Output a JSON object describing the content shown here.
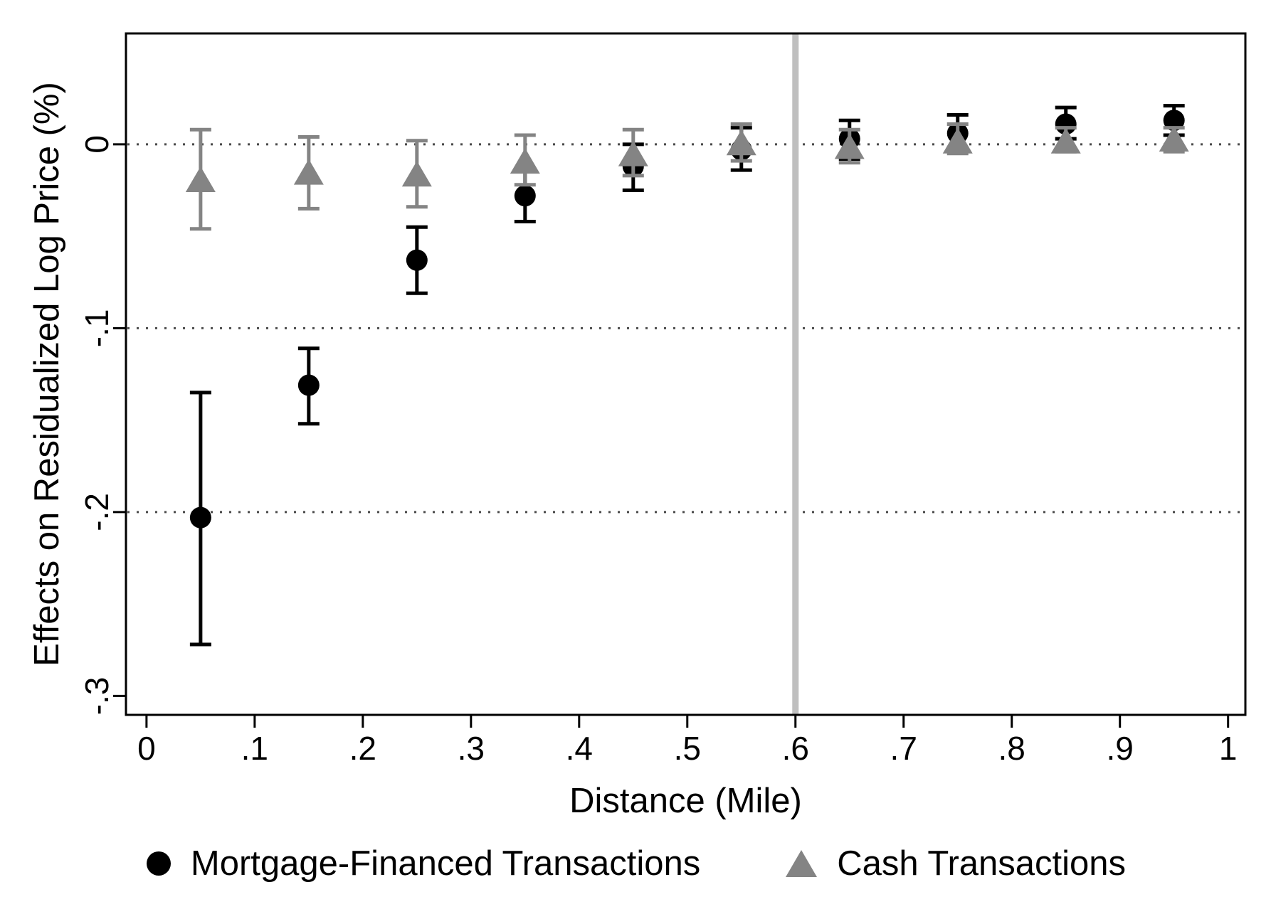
{
  "chart_data": {
    "type": "scatter",
    "title": "",
    "xlabel": "Distance (Mile)",
    "ylabel": "Effects on Residualized Log Price (%)",
    "xlim": [
      -0.019,
      1.016
    ],
    "ylim": [
      -0.3103,
      0.0603
    ],
    "x_ticks": {
      "values": [
        0,
        0.1,
        0.2,
        0.3,
        0.4,
        0.5,
        0.6,
        0.7,
        0.8,
        0.9,
        1
      ],
      "labels": [
        "0",
        ".1",
        ".2",
        ".3",
        ".4",
        ".5",
        ".6",
        ".7",
        ".8",
        ".9",
        "1"
      ]
    },
    "y_ticks": {
      "values": [
        0,
        -0.1,
        -0.2,
        -0.3
      ],
      "labels": [
        "0",
        "-.1",
        "-.2",
        "-.3"
      ]
    },
    "grid_y_values": [
      0,
      -0.1,
      -0.2
    ],
    "grid_style": "dotted",
    "vline_x": 0.6,
    "legend_position": "bottom",
    "series": [
      {
        "name": "Mortgage-Financed Transactions",
        "marker": "circle",
        "color": "#000000",
        "x": [
          0.05,
          0.15,
          0.25,
          0.35,
          0.45,
          0.55,
          0.65,
          0.75,
          0.85,
          0.95
        ],
        "y": [
          -0.203,
          -0.131,
          -0.063,
          -0.028,
          -0.012,
          -0.003,
          0.003,
          0.006,
          0.011,
          0.013
        ],
        "ci_low": [
          -0.272,
          -0.152,
          -0.081,
          -0.042,
          -0.025,
          -0.014,
          -0.008,
          -0.003,
          0.003,
          0.005
        ],
        "ci_high": [
          -0.135,
          -0.111,
          -0.045,
          -0.014,
          0.0,
          0.009,
          0.013,
          0.016,
          0.02,
          0.021
        ]
      },
      {
        "name": "Cash Transactions",
        "marker": "triangle",
        "color": "#848484",
        "x": [
          0.05,
          0.15,
          0.25,
          0.35,
          0.45,
          0.55,
          0.65,
          0.75,
          0.85,
          0.95
        ],
        "y": [
          -0.019,
          -0.015,
          -0.016,
          -0.009,
          -0.005,
          0.001,
          -0.001,
          0.002,
          0.002,
          0.003
        ],
        "ci_low": [
          -0.046,
          -0.035,
          -0.034,
          -0.022,
          -0.017,
          -0.009,
          -0.01,
          -0.005,
          -0.004,
          -0.004
        ],
        "ci_high": [
          0.008,
          0.004,
          0.002,
          0.005,
          0.008,
          0.011,
          0.008,
          0.011,
          0.009,
          0.009
        ]
      }
    ]
  },
  "legend": {
    "items": [
      {
        "label": "Mortgage-Financed Transactions"
      },
      {
        "label": "Cash Transactions"
      }
    ]
  },
  "styles": {
    "background": "#ffffff",
    "axis_color": "#000000",
    "grid_color": "#4a4a4a",
    "vline_color": "#bfbfbf",
    "black_series_color": "#000000",
    "gray_series_color": "#848484"
  }
}
